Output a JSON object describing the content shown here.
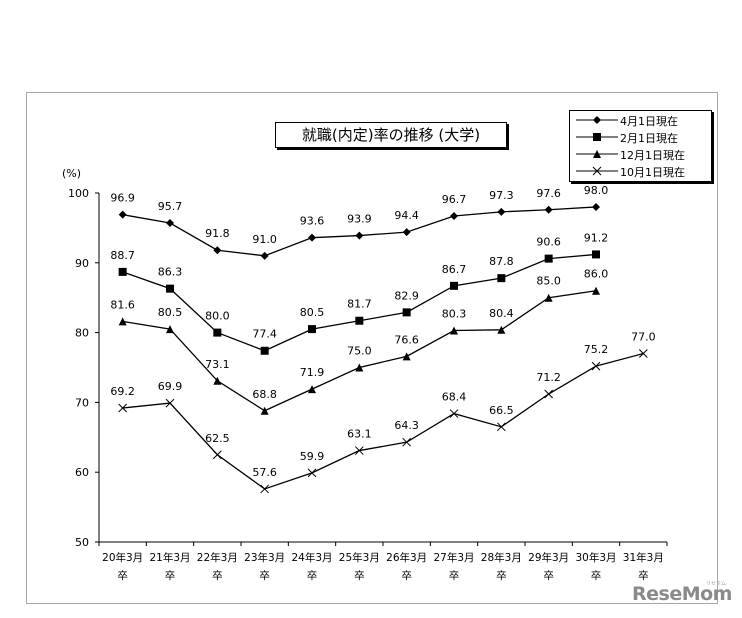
{
  "chart_data": {
    "type": "line",
    "title": "就職(内定)率の推移 (大学)",
    "yunit": "(%)",
    "ylim": [
      50,
      100
    ],
    "yticks": [
      "50",
      "60",
      "70",
      "80",
      "90",
      "100"
    ],
    "categories": [
      {
        "top": "20年3月",
        "bottom": "卒"
      },
      {
        "top": "21年3月",
        "bottom": "卒"
      },
      {
        "top": "22年3月",
        "bottom": "卒"
      },
      {
        "top": "23年3月",
        "bottom": "卒"
      },
      {
        "top": "24年3月",
        "bottom": "卒"
      },
      {
        "top": "25年3月",
        "bottom": "卒"
      },
      {
        "top": "26年3月",
        "bottom": "卒"
      },
      {
        "top": "27年3月",
        "bottom": "卒"
      },
      {
        "top": "28年3月",
        "bottom": "卒"
      },
      {
        "top": "29年3月",
        "bottom": "卒"
      },
      {
        "top": "30年3月",
        "bottom": "卒"
      },
      {
        "top": "31年3月",
        "bottom": "卒"
      }
    ],
    "series": [
      {
        "name": "4月1日現在",
        "marker": "diamond",
        "values": [
          96.9,
          95.7,
          91.8,
          91.0,
          93.6,
          93.9,
          94.4,
          96.7,
          97.3,
          97.6,
          98.0,
          null
        ],
        "labels": [
          "96.9",
          "95.7",
          "91.8",
          "91.0",
          "93.6",
          "93.9",
          "94.4",
          "96.7",
          "97.3",
          "97.6",
          "98.0",
          null
        ]
      },
      {
        "name": "2月1日現在",
        "marker": "square",
        "values": [
          88.7,
          86.3,
          80.0,
          77.4,
          80.5,
          81.7,
          82.9,
          86.7,
          87.8,
          90.6,
          91.2,
          null
        ],
        "labels": [
          "88.7",
          "86.3",
          "80.0",
          "77.4",
          "80.5",
          "81.7",
          "82.9",
          "86.7",
          "87.8",
          "90.6",
          "91.2",
          null
        ]
      },
      {
        "name": "12月1日現在",
        "marker": "triangle",
        "values": [
          81.6,
          80.5,
          73.1,
          68.8,
          71.9,
          75.0,
          76.6,
          80.3,
          80.4,
          85.0,
          86.0,
          null
        ],
        "labels": [
          "81.6",
          "80.5",
          "73.1",
          "68.8",
          "71.9",
          "75.0",
          "76.6",
          "80.3",
          "80.4",
          "85.0",
          "86.0",
          null
        ]
      },
      {
        "name": "10月1日現在",
        "marker": "x",
        "values": [
          69.2,
          69.9,
          62.5,
          57.6,
          59.9,
          63.1,
          64.3,
          68.4,
          66.5,
          71.2,
          75.2,
          77.0
        ],
        "labels": [
          "69.2",
          "69.9",
          "62.5",
          "57.6",
          "59.9",
          "63.1",
          "64.3",
          "68.4",
          "66.5",
          "71.2",
          "75.2",
          "77.0"
        ]
      }
    ],
    "legend_position": "top-right",
    "grid": false
  },
  "watermark": "ReseMom",
  "watermark_sub": "リセマム"
}
